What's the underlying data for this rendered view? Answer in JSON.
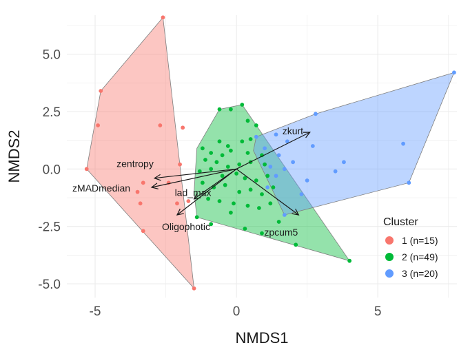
{
  "chart_data": {
    "type": "scatter",
    "title": "",
    "xlabel": "NMDS1",
    "ylabel": "NMDS2",
    "xlim": [
      -6.0,
      7.8
    ],
    "ylim": [
      -5.6,
      6.7
    ],
    "x_ticks": [
      -5,
      0,
      5
    ],
    "x_tick_labels": [
      "-5",
      "0",
      "5"
    ],
    "y_ticks": [
      -5.0,
      -2.5,
      0.0,
      2.5,
      5.0
    ],
    "y_tick_labels": [
      "-5.0",
      "-2.5",
      "0.0",
      "2.5",
      "5.0"
    ],
    "grid": true,
    "legend": {
      "title": "Cluster",
      "position": "bottom-right",
      "entries": [
        "1 (n=15)",
        "2 (n=49)",
        "3 (n=20)"
      ]
    },
    "series": [
      {
        "color": "#f8766d",
        "points": [
          [
            -2.6,
            6.6
          ],
          [
            -4.8,
            3.4
          ],
          [
            -4.9,
            1.9
          ],
          [
            -2.7,
            1.9
          ],
          [
            -1.9,
            1.8
          ],
          [
            -5.3,
            0.0
          ],
          [
            -2.0,
            0.2
          ],
          [
            -2.4,
            -0.6
          ],
          [
            -3.3,
            -0.6
          ],
          [
            -3.5,
            -1.0
          ],
          [
            -3.4,
            -1.5
          ],
          [
            -2.1,
            -1.5
          ],
          [
            -1.7,
            -1.4
          ],
          [
            -3.3,
            -2.7
          ],
          [
            -1.5,
            -5.2
          ]
        ],
        "hull": [
          [
            -2.6,
            6.6
          ],
          [
            -1.5,
            -5.2
          ],
          [
            -5.3,
            0.0
          ],
          [
            -4.8,
            3.4
          ]
        ]
      },
      {
        "color": "#00ba38",
        "points": [
          [
            -0.6,
            2.6
          ],
          [
            -0.2,
            2.6
          ],
          [
            0.2,
            2.8
          ],
          [
            0.4,
            2.1
          ],
          [
            0.7,
            1.9
          ],
          [
            -0.6,
            1.2
          ],
          [
            -0.3,
            1.0
          ],
          [
            0.2,
            1.2
          ],
          [
            0.5,
            1.3
          ],
          [
            -1.2,
            0.9
          ],
          [
            -0.9,
            0.7
          ],
          [
            -0.5,
            0.6
          ],
          [
            -0.2,
            0.8
          ],
          [
            0.4,
            0.7
          ],
          [
            0.9,
            0.6
          ],
          [
            -1.1,
            0.4
          ],
          [
            -0.7,
            0.3
          ],
          [
            -0.3,
            0.1
          ],
          [
            0.1,
            0.2
          ],
          [
            0.5,
            0.3
          ],
          [
            1.0,
            0.2
          ],
          [
            -1.3,
            -0.1
          ],
          [
            -0.9,
            0.0
          ],
          [
            -0.5,
            -0.3
          ],
          [
            0.0,
            -0.2
          ],
          [
            0.3,
            -0.4
          ],
          [
            0.7,
            -0.5
          ],
          [
            1.1,
            -0.3
          ],
          [
            -1.2,
            -0.6
          ],
          [
            -0.8,
            -0.8
          ],
          [
            -0.4,
            -0.7
          ],
          [
            0.1,
            -1.0
          ],
          [
            0.5,
            -0.9
          ],
          [
            0.9,
            -1.1
          ],
          [
            1.3,
            -0.8
          ],
          [
            -1.0,
            -1.3
          ],
          [
            -0.6,
            -1.4
          ],
          [
            -0.1,
            -1.5
          ],
          [
            0.4,
            -1.6
          ],
          [
            0.8,
            -1.7
          ],
          [
            1.2,
            -1.5
          ],
          [
            -1.4,
            -2.1
          ],
          [
            -0.9,
            -2.4
          ],
          [
            0.3,
            -2.6
          ],
          [
            0.9,
            -2.8
          ],
          [
            1.5,
            -2.3
          ],
          [
            2.1,
            -3.3
          ],
          [
            4.0,
            -4.0
          ],
          [
            -0.2,
            -1.9
          ]
        ],
        "hull": [
          [
            -0.6,
            2.6
          ],
          [
            0.2,
            2.8
          ],
          [
            4.0,
            -4.0
          ],
          [
            -1.4,
            -2.1
          ],
          [
            -1.5,
            -1.0
          ],
          [
            -1.4,
            0.9
          ]
        ]
      },
      {
        "color": "#619cff",
        "points": [
          [
            7.7,
            4.2
          ],
          [
            2.8,
            2.4
          ],
          [
            1.4,
            1.5
          ],
          [
            0.7,
            1.4
          ],
          [
            1.8,
            1.2
          ],
          [
            2.7,
            1.0
          ],
          [
            1.0,
            0.9
          ],
          [
            5.9,
            1.1
          ],
          [
            1.5,
            0.6
          ],
          [
            2.0,
            0.3
          ],
          [
            3.8,
            0.3
          ],
          [
            1.2,
            0.1
          ],
          [
            1.7,
            0.0
          ],
          [
            3.5,
            -0.1
          ],
          [
            1.4,
            -0.3
          ],
          [
            2.5,
            -0.5
          ],
          [
            6.1,
            -0.6
          ],
          [
            1.1,
            -0.8
          ],
          [
            2.3,
            -1.1
          ],
          [
            1.7,
            -2.0
          ]
        ],
        "hull": [
          [
            7.7,
            4.2
          ],
          [
            6.1,
            -0.6
          ],
          [
            1.7,
            -2.0
          ],
          [
            0.6,
            0.8
          ],
          [
            0.7,
            1.4
          ],
          [
            2.8,
            2.4
          ]
        ]
      }
    ],
    "vectors": [
      {
        "label": "zkurt",
        "x": 2.6,
        "y": 1.6
      },
      {
        "label": "zpcum5",
        "x": 2.2,
        "y": -2.0
      },
      {
        "label": "zentropy",
        "x": -2.9,
        "y": -0.4
      },
      {
        "label": "zMADmedian",
        "x": -3.0,
        "y": -0.8
      },
      {
        "label": "lad_max",
        "x": -1.5,
        "y": -1.3
      },
      {
        "label": "Oligophotic",
        "x": -2.1,
        "y": -2.0
      }
    ]
  }
}
